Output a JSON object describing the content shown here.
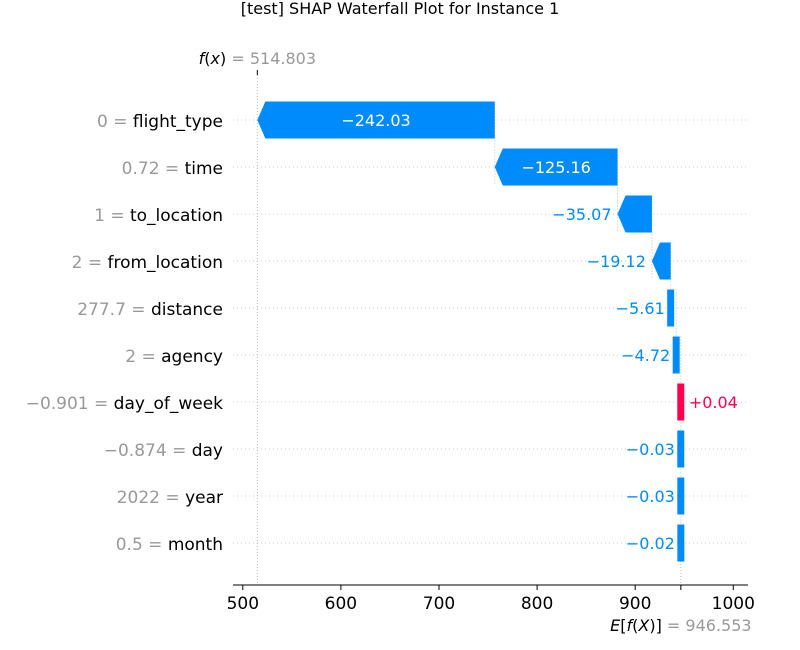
{
  "chart_data": {
    "type": "waterfall",
    "title": "[test] SHAP Waterfall Plot for Instance 1",
    "fx": {
      "label": "f(x)",
      "value": "514.803"
    },
    "ex": {
      "label": "E[f(X)]",
      "value": "946.553"
    },
    "features": [
      {
        "value": "0",
        "name": "flight_type",
        "shap": -242.03,
        "label": "−242.03"
      },
      {
        "value": "0.72",
        "name": "time",
        "shap": -125.16,
        "label": "−125.16"
      },
      {
        "value": "1",
        "name": "to_location",
        "shap": -35.07,
        "label": "−35.07"
      },
      {
        "value": "2",
        "name": "from_location",
        "shap": -19.12,
        "label": "−19.12"
      },
      {
        "value": "277.7",
        "name": "distance",
        "shap": -5.61,
        "label": "−5.61"
      },
      {
        "value": "2",
        "name": "agency",
        "shap": -4.72,
        "label": "−4.72"
      },
      {
        "value": "−0.901",
        "name": "day_of_week",
        "shap": 0.04,
        "label": "+0.04"
      },
      {
        "value": "−0.874",
        "name": "day",
        "shap": -0.03,
        "label": "−0.03"
      },
      {
        "value": "2022",
        "name": "year",
        "shap": -0.03,
        "label": "−0.03"
      },
      {
        "value": "0.5",
        "name": "month",
        "shap": -0.02,
        "label": "−0.02"
      }
    ],
    "xlim": [
      490,
      1015
    ],
    "xticks": [
      500,
      600,
      700,
      800,
      900,
      1000
    ],
    "grid": true,
    "colors": {
      "negative": "#008bfb",
      "positive": "#ff0051",
      "text_gray": "#999999"
    }
  }
}
